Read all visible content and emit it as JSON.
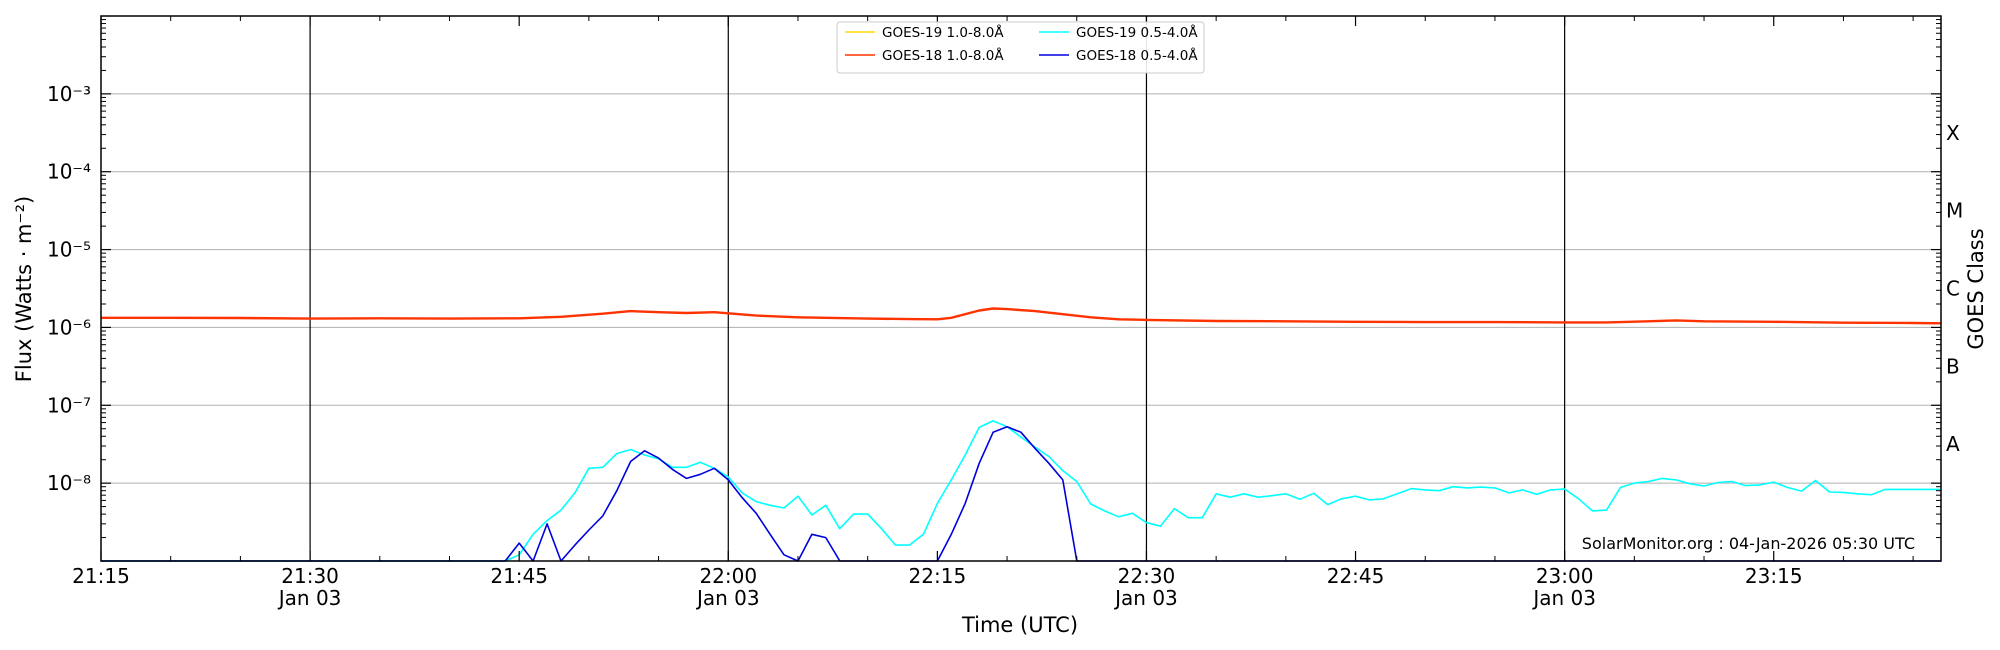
{
  "chart_data": {
    "type": "line",
    "xlabel": "Time (UTC)",
    "ylabel": "Flux (Watts · m⁻²)",
    "ylabel_right": "GOES Class",
    "y_scale": "log",
    "ylim": [
      1e-09,
      0.01
    ],
    "x_unit": "minutes",
    "xlim": [
      "21:15",
      "23:27"
    ],
    "grid": "horizontal at decades, vertical at 30-minute marks",
    "legend_placement": "top-center",
    "annotation": "SolarMonitor.org : 04-Jan-2026 05:30 UTC",
    "x_ticks": [
      {
        "time": "21:15",
        "label": "21:15",
        "sublabel": ""
      },
      {
        "time": "21:30",
        "label": "21:30",
        "sublabel": "Jan 03"
      },
      {
        "time": "21:45",
        "label": "21:45",
        "sublabel": ""
      },
      {
        "time": "22:00",
        "label": "22:00",
        "sublabel": "Jan 03"
      },
      {
        "time": "22:15",
        "label": "22:15",
        "sublabel": ""
      },
      {
        "time": "22:30",
        "label": "22:30",
        "sublabel": "Jan 03"
      },
      {
        "time": "22:45",
        "label": "22:45",
        "sublabel": ""
      },
      {
        "time": "23:00",
        "label": "23:00",
        "sublabel": "Jan 03"
      },
      {
        "time": "23:15",
        "label": "23:15",
        "sublabel": ""
      }
    ],
    "y_ticks": [
      {
        "value": 1e-08,
        "label": "10⁻⁸"
      },
      {
        "value": 1e-07,
        "label": "10⁻⁷"
      },
      {
        "value": 1e-06,
        "label": "10⁻⁶"
      },
      {
        "value": 1e-05,
        "label": "10⁻⁵"
      },
      {
        "value": 0.0001,
        "label": "10⁻⁴"
      },
      {
        "value": 0.001,
        "label": "10⁻³"
      }
    ],
    "goes_classes": [
      {
        "label": "A",
        "low": 1e-08
      },
      {
        "label": "B",
        "low": 1e-07
      },
      {
        "label": "C",
        "low": 1e-06
      },
      {
        "label": "M",
        "low": 1e-05
      },
      {
        "label": "X",
        "low": 0.0001
      }
    ],
    "series": [
      {
        "name": "GOES-19 1.0-8.0Å",
        "color": "#ffd700",
        "x": [],
        "y": []
      },
      {
        "name": "GOES-18 1.0-8.0Å",
        "color": "#ff3300",
        "x": [
          "21:15",
          "21:20",
          "21:25",
          "21:30",
          "21:35",
          "21:40",
          "21:45",
          "21:48",
          "21:51",
          "21:53",
          "21:55",
          "21:57",
          "21:59",
          "22:00",
          "22:02",
          "22:05",
          "22:10",
          "22:13",
          "22:15",
          "22:16",
          "22:18",
          "22:19",
          "22:20",
          "22:22",
          "22:24",
          "22:26",
          "22:28",
          "22:30",
          "22:35",
          "22:40",
          "22:45",
          "22:50",
          "22:55",
          "23:00",
          "23:03",
          "23:06",
          "23:08",
          "23:10",
          "23:15",
          "23:20",
          "23:25",
          "23:27"
        ],
        "y": [
          1.33e-06,
          1.33e-06,
          1.32e-06,
          1.3e-06,
          1.31e-06,
          1.3e-06,
          1.31e-06,
          1.37e-06,
          1.5e-06,
          1.62e-06,
          1.57e-06,
          1.53e-06,
          1.57e-06,
          1.52e-06,
          1.42e-06,
          1.35e-06,
          1.3e-06,
          1.28e-06,
          1.27e-06,
          1.33e-06,
          1.65e-06,
          1.75e-06,
          1.72e-06,
          1.62e-06,
          1.48e-06,
          1.35e-06,
          1.27e-06,
          1.25e-06,
          1.21e-06,
          1.2e-06,
          1.18e-06,
          1.17e-06,
          1.17e-06,
          1.16e-06,
          1.16e-06,
          1.2e-06,
          1.23e-06,
          1.2e-06,
          1.18e-06,
          1.15e-06,
          1.14e-06,
          1.13e-06
        ]
      },
      {
        "name": "GOES-19 0.5-4.0Å",
        "color": "#00ffff",
        "x": [
          "21:15",
          "21:44",
          "21:45",
          "21:46",
          "21:47",
          "21:48",
          "21:49",
          "21:50",
          "21:51",
          "21:52",
          "21:53",
          "21:54",
          "21:55",
          "21:56",
          "21:57",
          "21:58",
          "21:59",
          "22:00",
          "22:01",
          "22:02",
          "22:03",
          "22:04",
          "22:05",
          "22:06",
          "22:07",
          "22:08",
          "22:09",
          "22:10",
          "22:11",
          "22:12",
          "22:13",
          "22:14",
          "22:15",
          "22:16",
          "22:17",
          "22:18",
          "22:19",
          "22:20",
          "22:21",
          "22:22",
          "22:23",
          "22:24",
          "22:25",
          "22:26",
          "22:27",
          "22:28",
          "22:29",
          "22:30",
          "22:31",
          "22:32",
          "22:33",
          "22:34",
          "22:35",
          "22:36",
          "22:37",
          "22:38",
          "22:39",
          "22:40",
          "22:41",
          "22:42",
          "22:43",
          "22:44",
          "22:45",
          "22:46",
          "22:47",
          "22:48",
          "22:49",
          "22:50",
          "22:51",
          "22:52",
          "22:53",
          "22:54",
          "22:55",
          "22:56",
          "22:57",
          "22:58",
          "22:59",
          "23:00",
          "23:01",
          "23:02",
          "23:03",
          "23:04",
          "23:05",
          "23:06",
          "23:07",
          "23:08",
          "23:09",
          "23:10",
          "23:11",
          "23:12",
          "23:13",
          "23:14",
          "23:15",
          "23:16",
          "23:17",
          "23:18",
          "23:19",
          "23:20",
          "23:21",
          "23:22",
          "23:23",
          "23:24",
          "23:25",
          "23:26",
          "23:27"
        ],
        "y": [
          1e-09,
          1e-09,
          1.2e-09,
          2.2e-09,
          3.3e-09,
          4.5e-09,
          7.5e-09,
          1.55e-08,
          1.6e-08,
          2.4e-08,
          2.7e-08,
          2.3e-08,
          2.05e-08,
          1.6e-08,
          1.6e-08,
          1.85e-08,
          1.55e-08,
          1.2e-08,
          7.5e-09,
          5.8e-09,
          5.2e-09,
          4.8e-09,
          6.8e-09,
          3.9e-09,
          5.2e-09,
          2.6e-09,
          4e-09,
          4e-09,
          2.6e-09,
          1.6e-09,
          1.6e-09,
          2.2e-09,
          5.5e-09,
          1.1e-08,
          2.3e-08,
          5.2e-08,
          6.3e-08,
          5.3e-08,
          3.9e-08,
          2.9e-08,
          2.2e-08,
          1.45e-08,
          1.05e-08,
          5.4e-09,
          4.4e-09,
          3.7e-09,
          4.1e-09,
          3.1e-09,
          2.8e-09,
          4.7e-09,
          3.6e-09,
          3.6e-09,
          7.3e-09,
          6.6e-09,
          7.3e-09,
          6.6e-09,
          6.9e-09,
          7.3e-09,
          6.2e-09,
          7.4e-09,
          5.3e-09,
          6.3e-09,
          6.8e-09,
          6.1e-09,
          6.3e-09,
          7.3e-09,
          8.5e-09,
          8.2e-09,
          8e-09,
          9e-09,
          8.7e-09,
          8.9e-09,
          8.7e-09,
          7.5e-09,
          8.2e-09,
          7.2e-09,
          8.2e-09,
          8.4e-09,
          6.3e-09,
          4.4e-09,
          4.5e-09,
          8.8e-09,
          1e-08,
          1.05e-08,
          1.15e-08,
          1.1e-08,
          9.8e-09,
          9.2e-09,
          1.02e-08,
          1.05e-08,
          9.3e-09,
          9.5e-09,
          1.03e-08,
          8.8e-09,
          7.9e-09,
          1.08e-08,
          7.7e-09,
          7.6e-09,
          7.3e-09,
          7.1e-09,
          8.3e-09,
          8.3e-09,
          8.3e-09,
          8.3e-09,
          8.3e-09
        ]
      },
      {
        "name": "GOES-18 0.5-4.0Å",
        "color": "#0000dd",
        "x": [
          "21:15",
          "21:44",
          "21:45",
          "21:46",
          "21:47",
          "21:48",
          "21:49",
          "21:50",
          "21:51",
          "21:52",
          "21:53",
          "21:54",
          "21:55",
          "21:56",
          "21:57",
          "21:58",
          "21:59",
          "22:00",
          "22:01",
          "22:02",
          "22:03",
          "22:04",
          "22:05",
          "22:06",
          "22:07",
          "22:08",
          "22:09",
          "22:10",
          "22:11",
          "22:12",
          "22:13",
          "22:14",
          "22:15",
          "22:16",
          "22:17",
          "22:18",
          "22:19",
          "22:20",
          "22:21",
          "22:22",
          "22:23",
          "22:24",
          "22:25",
          "22:26",
          "22:27",
          "22:30",
          "22:45",
          "23:00",
          "23:15",
          "23:27"
        ],
        "y": [
          1e-09,
          1e-09,
          1.7e-09,
          1e-09,
          3e-09,
          1e-09,
          1.6e-09,
          2.5e-09,
          3.8e-09,
          8e-09,
          1.9e-08,
          2.6e-08,
          2.1e-08,
          1.5e-08,
          1.15e-08,
          1.3e-08,
          1.55e-08,
          1.1e-08,
          6.5e-09,
          4.1e-09,
          2.2e-09,
          1.2e-09,
          1e-09,
          2.2e-09,
          2e-09,
          1e-09,
          1e-09,
          1e-09,
          1e-09,
          1e-09,
          1e-09,
          1e-09,
          1e-09,
          2.2e-09,
          5.5e-09,
          1.8e-08,
          4.5e-08,
          5.3e-08,
          4.5e-08,
          2.8e-08,
          1.8e-08,
          1.1e-08,
          1e-09,
          1e-09,
          1e-09,
          1e-09,
          1e-09,
          1e-09,
          1e-09,
          1e-09
        ]
      }
    ]
  }
}
